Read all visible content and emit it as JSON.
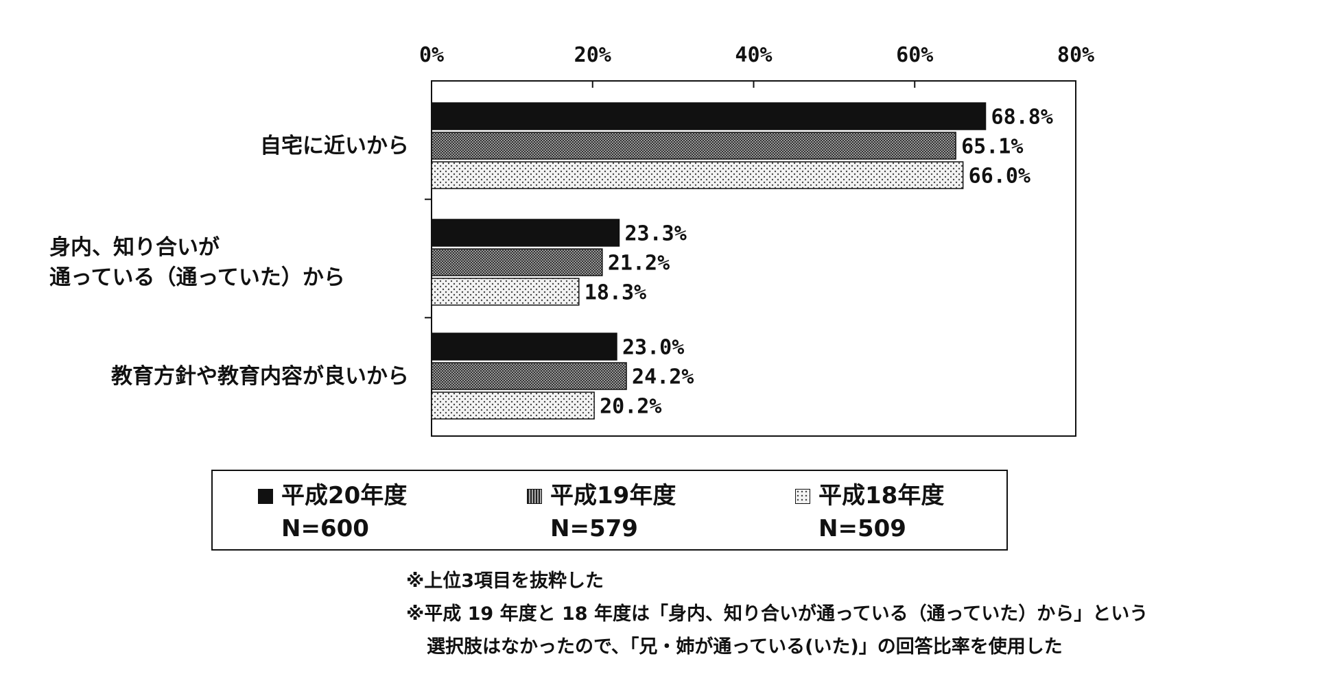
{
  "chart_data": {
    "type": "bar",
    "orientation": "horizontal",
    "categories": [
      "自宅に近いから",
      "身内、知り合いが\n通っている（通っていた）から",
      "教育方針や教育内容が良いから"
    ],
    "series": [
      {
        "name": "平成20年度",
        "n": "N=600",
        "values": [
          68.8,
          23.3,
          23.0
        ],
        "labels": [
          "68.8%",
          "23.3%",
          "23.0%"
        ],
        "fill": "solid",
        "color": "#111111"
      },
      {
        "name": "平成19年度",
        "n": "N=579",
        "values": [
          65.1,
          21.2,
          24.2
        ],
        "labels": [
          "65.1%",
          "21.2%",
          "24.2%"
        ],
        "fill": "crosshatch",
        "color": "#555555"
      },
      {
        "name": "平成18年度",
        "n": "N=509",
        "values": [
          66.0,
          18.3,
          20.2
        ],
        "labels": [
          "66.0%",
          "18.3%",
          "20.2%"
        ],
        "fill": "dots",
        "color": "#777777"
      }
    ],
    "xlim": [
      0,
      80
    ],
    "xticks": [
      "0%",
      "20%",
      "40%",
      "60%",
      "80%"
    ],
    "axis_position": "top",
    "grid": false,
    "legend_position": "bottom"
  },
  "notes": [
    "※上位3項目を抜粋した",
    "※平成 19 年度と 18 年度は「身内、知り合いが通っている（通っていた）から」という",
    "選択肢はなかったので、「兄・姉が通っている(いた)」の回答比率を使用した"
  ]
}
